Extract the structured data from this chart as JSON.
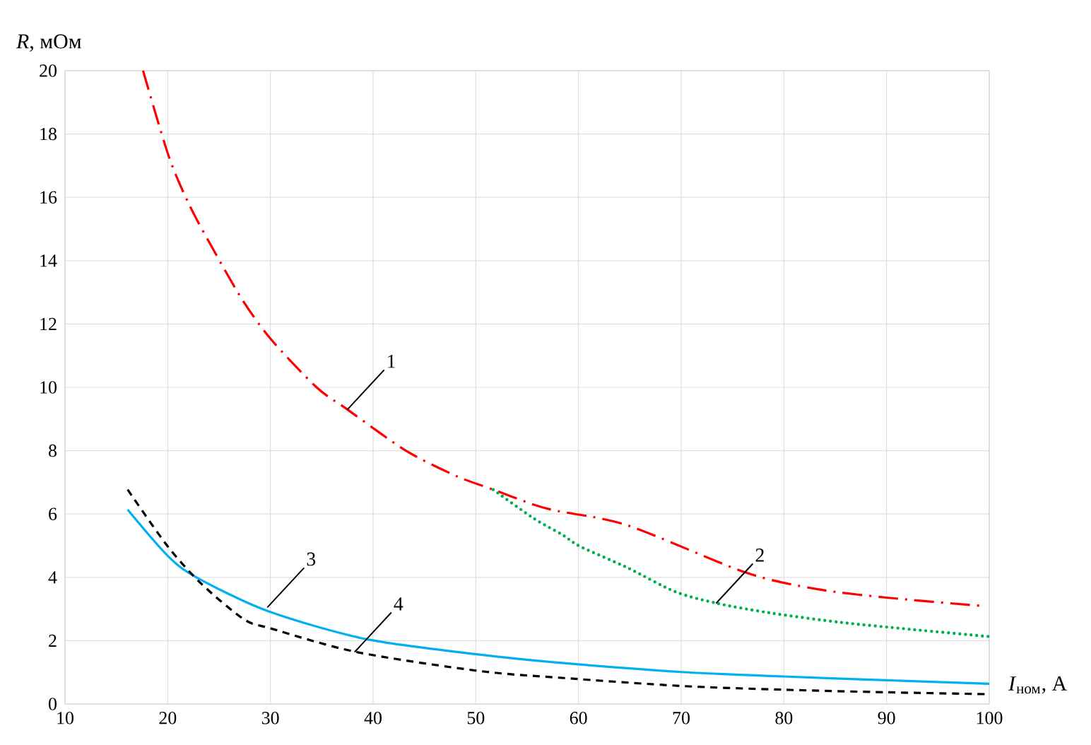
{
  "chart_data": {
    "type": "line",
    "xlabel": "*I*$_{ном}$, А",
    "ylabel": "*R*, мОм",
    "xlim": [
      10,
      100
    ],
    "ylim": [
      0,
      20
    ],
    "xticks": [
      10,
      20,
      30,
      40,
      50,
      60,
      70,
      80,
      90,
      100
    ],
    "yticks": [
      0,
      2,
      4,
      6,
      8,
      10,
      12,
      14,
      16,
      18,
      20
    ],
    "grid": true,
    "marker": "none",
    "series": [
      {
        "color": "#ff0000",
        "line_style": "dashdot",
        "x": [
          17.6,
          20.1,
          22.2,
          24.7,
          27.4,
          30.1,
          34.5,
          37.5,
          43.2,
          48.1,
          51.7,
          55.6,
          57.9,
          64.8,
          76.3,
          83.2,
          90.0,
          99.2
        ],
        "values": [
          20,
          17.3,
          15.7,
          14.2,
          12.7,
          11.5,
          10.0,
          9.3,
          8.0,
          7.2,
          6.77,
          6.3,
          6.1,
          5.64,
          4.15,
          3.63,
          3.36,
          3.1
        ]
      },
      {
        "color": "#00b050",
        "line_style": "dotted",
        "x": [
          51.7,
          55.6,
          58.4,
          60.2,
          64.8,
          69.4,
          73.5,
          78.6,
          85.5,
          92.3,
          100
        ],
        "values": [
          6.77,
          5.87,
          5.35,
          4.97,
          4.3,
          3.55,
          3.18,
          2.88,
          2.58,
          2.36,
          2.13
        ]
      },
      {
        "color": "#00b0f0",
        "line_style": "solid",
        "x": [
          16.1,
          20,
          22.8,
          29.7,
          39.3,
          50.4,
          58.6,
          70,
          80,
          90,
          100
        ],
        "values": [
          6.14,
          4.68,
          4.0,
          2.94,
          2.05,
          1.56,
          1.29,
          1.01,
          0.87,
          0.75,
          0.64
        ]
      },
      {
        "color": "#000000",
        "line_style": "dashed",
        "x": [
          16.1,
          20,
          23.3,
          27.4,
          30.1,
          38.4,
          50.4,
          58.6,
          70,
          80,
          90,
          100
        ],
        "values": [
          6.77,
          4.98,
          3.79,
          2.68,
          2.38,
          1.64,
          1.04,
          0.82,
          0.57,
          0.45,
          0.37,
          0.31
        ]
      }
    ],
    "annotations": [
      {
        "text": "1",
        "x": 37.5,
        "y": 9.3
      },
      {
        "text": "2",
        "x": 73.4,
        "y": 3.18
      },
      {
        "text": "3",
        "x": 29.7,
        "y": 3.05
      },
      {
        "text": "4",
        "x": 38.2,
        "y": 1.64
      }
    ]
  }
}
